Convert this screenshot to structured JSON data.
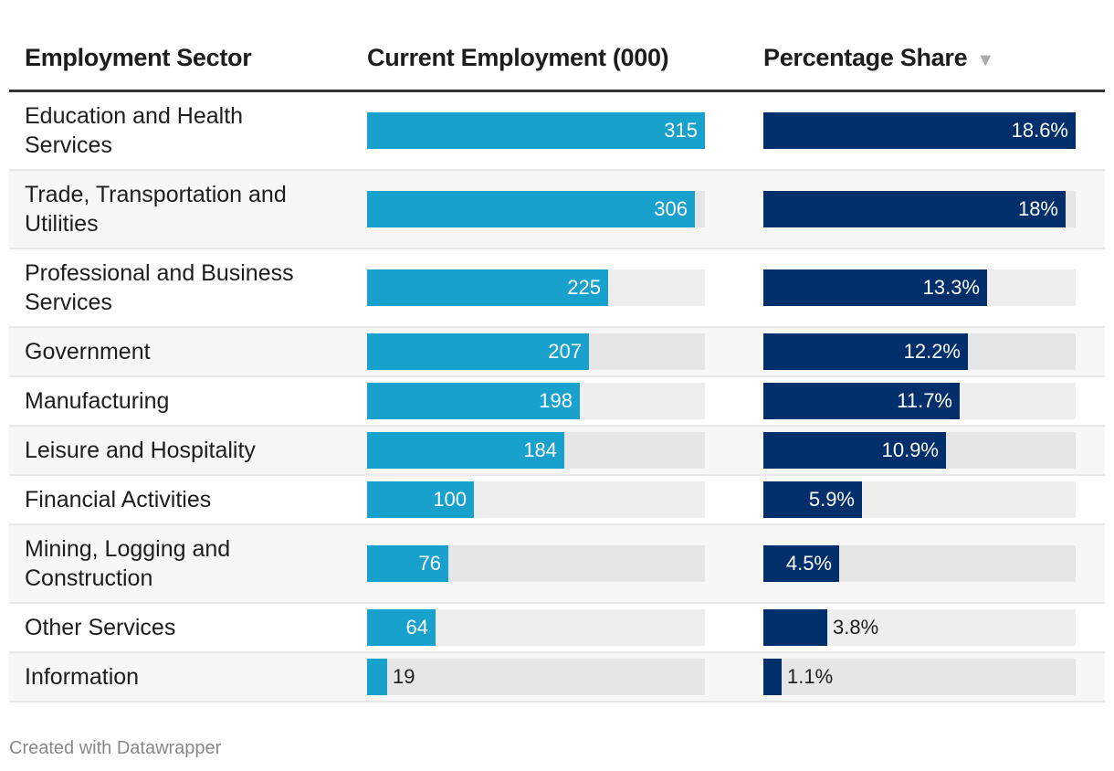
{
  "chart_data": {
    "type": "table",
    "columns": [
      "Employment Sector",
      "Current Employment (000)",
      "Percentage Share"
    ],
    "sort_column": "Percentage Share",
    "sort_order": "descending",
    "rows": [
      {
        "sector": "Education and Health Services",
        "employment": 315,
        "share": 18.6,
        "share_label": "18.6%"
      },
      {
        "sector": "Trade, Transportation and Utilities",
        "employment": 306,
        "share": 18,
        "share_label": "18%"
      },
      {
        "sector": "Professional and Business Services",
        "employment": 225,
        "share": 13.3,
        "share_label": "13.3%"
      },
      {
        "sector": "Government",
        "employment": 207,
        "share": 12.2,
        "share_label": "12.2%"
      },
      {
        "sector": "Manufacturing",
        "employment": 198,
        "share": 11.7,
        "share_label": "11.7%"
      },
      {
        "sector": "Leisure and Hospitality",
        "employment": 184,
        "share": 10.9,
        "share_label": "10.9%"
      },
      {
        "sector": "Financial Activities",
        "employment": 100,
        "share": 5.9,
        "share_label": "5.9%"
      },
      {
        "sector": "Mining, Logging and Construction",
        "employment": 76,
        "share": 4.5,
        "share_label": "4.5%"
      },
      {
        "sector": "Other Services",
        "employment": 64,
        "share": 3.8,
        "share_label": "3.8%"
      },
      {
        "sector": "Information",
        "employment": 19,
        "share": 1.1,
        "share_label": "1.1%"
      }
    ],
    "colors": {
      "employment_bar": "#18a1cd",
      "share_bar": "#002f6c",
      "bar_track": "#eeeeee",
      "header_rule": "#333333"
    }
  },
  "sort_icon": "triangle-down-icon",
  "footer": "Created with Datawrapper"
}
